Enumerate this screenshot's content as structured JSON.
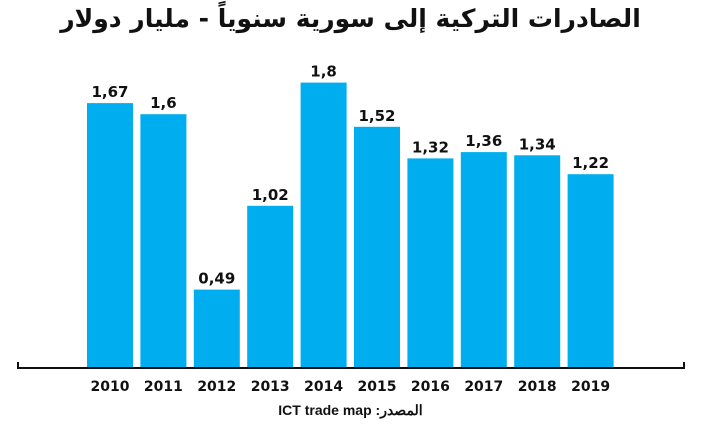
{
  "chart_data": {
    "type": "bar",
    "title": "الصادرات التركية إلى سورية سنوياً - مليار دولار",
    "categories": [
      "2010",
      "2011",
      "2012",
      "2013",
      "2014",
      "2015",
      "2016",
      "2017",
      "2018",
      "2019"
    ],
    "values": [
      1.67,
      1.6,
      0.49,
      1.02,
      1.8,
      1.52,
      1.32,
      1.36,
      1.34,
      1.22
    ],
    "data_labels": [
      "1,67",
      "1,6",
      "0,49",
      "1,02",
      "1,8",
      "1,52",
      "1,32",
      "1,36",
      "1,34",
      "1,22"
    ],
    "xlabel": "",
    "ylabel": "",
    "ylim": [
      0,
      2
    ],
    "grid": false,
    "legend": "none",
    "bar_color": "#00aeef",
    "source": "المصدر: ICT trade map"
  }
}
